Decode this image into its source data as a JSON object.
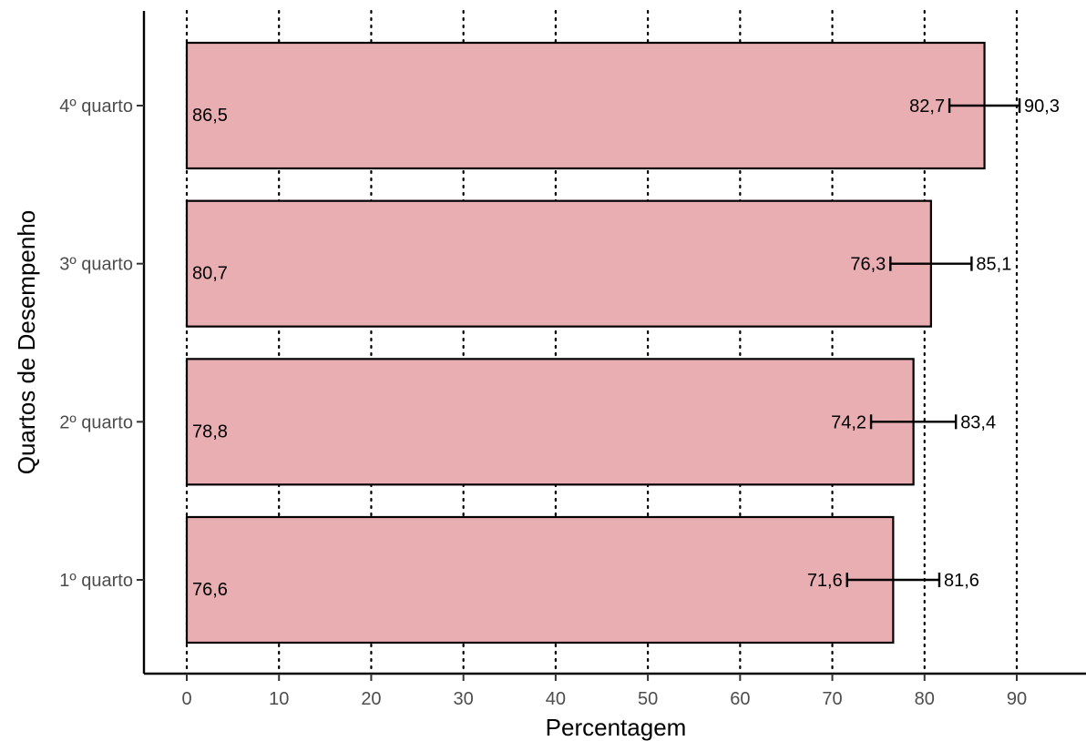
{
  "chart_data": {
    "type": "bar",
    "orientation": "horizontal",
    "title": "",
    "xlabel": "Percentagem",
    "ylabel": "Quartos de Desempenho",
    "xlim": [
      0,
      95
    ],
    "x_ticks": [
      "0",
      "10",
      "20",
      "30",
      "40",
      "50",
      "60",
      "70",
      "80",
      "90"
    ],
    "grid": "vertical dotted",
    "legend": "none",
    "bar_color": "#e8aeb2",
    "categories": [
      "1º quarto",
      "2º quarto",
      "3º quarto",
      "4º quarto"
    ],
    "values": [
      76.6,
      78.8,
      80.7,
      86.5
    ],
    "value_labels": [
      "76,6",
      "78,8",
      "80,7",
      "86,5"
    ],
    "ci_lower": [
      71.6,
      74.2,
      76.3,
      82.7
    ],
    "ci_upper": [
      81.6,
      83.4,
      85.1,
      90.3
    ],
    "ci_lower_labels": [
      "71,6",
      "74,2",
      "76,3",
      "82,7"
    ],
    "ci_upper_labels": [
      "81,6",
      "83,4",
      "85,1",
      "90,3"
    ]
  }
}
